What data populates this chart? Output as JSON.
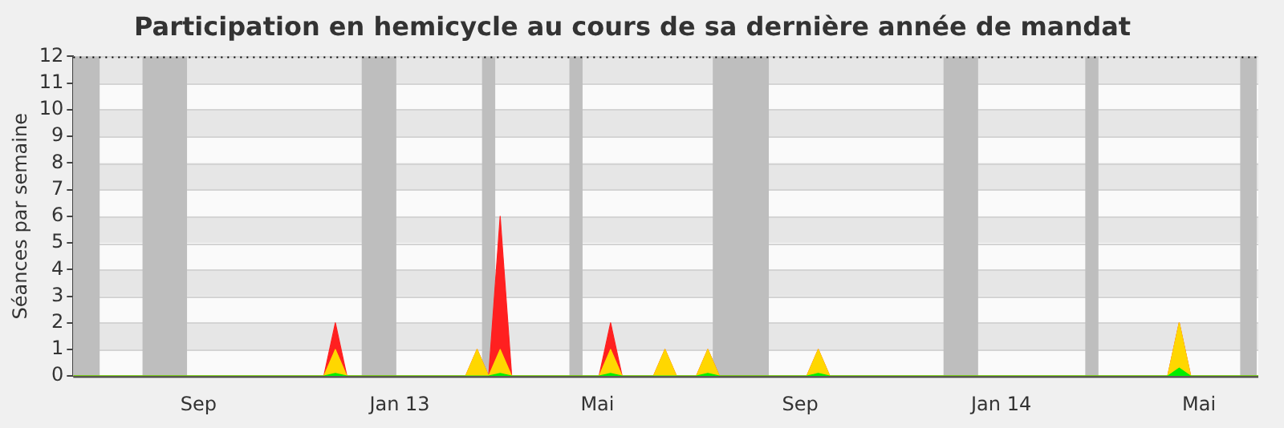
{
  "chart_data": {
    "type": "area",
    "title": "Participation en hemicycle au cours de sa dernière année de mandat",
    "ylabel": "Séances par semaine",
    "x": [
      "2012-07-01",
      "2012-11-30",
      "2012-12-07",
      "2012-12-14",
      "2013-02-24",
      "2013-03-03",
      "2013-03-10",
      "2013-03-17",
      "2013-03-24",
      "2013-05-16",
      "2013-05-23",
      "2013-05-30",
      "2013-06-18",
      "2013-06-25",
      "2013-07-02",
      "2013-07-14",
      "2013-07-21",
      "2013-07-28",
      "2013-09-19",
      "2013-09-26",
      "2013-10-03",
      "2014-04-26",
      "2014-05-03",
      "2014-05-10",
      "2014-06-20"
    ],
    "series": [
      {
        "color": "#ff2020",
        "values": [
          0,
          0,
          2,
          0,
          0,
          1,
          0,
          6,
          0,
          0,
          2,
          0,
          0,
          1,
          0,
          0,
          1,
          0,
          0,
          1,
          0,
          0,
          2,
          0,
          0
        ]
      },
      {
        "color": "#ffd700",
        "values": [
          0,
          0,
          1,
          0,
          0,
          1,
          0,
          1,
          0,
          0,
          1,
          0,
          0,
          1,
          0,
          0,
          1,
          0,
          0,
          1,
          0,
          0,
          2,
          0,
          0
        ]
      },
      {
        "color": "#00ee00",
        "values": [
          0,
          0,
          0.1,
          0,
          0,
          0,
          0,
          0.1,
          0,
          0,
          0.1,
          0,
          0,
          0,
          0,
          0,
          0.1,
          0,
          0,
          0.1,
          0,
          0,
          0.3,
          0,
          0
        ]
      }
    ],
    "xlim": [
      "2012-07-01",
      "2014-06-20"
    ],
    "xticks": [
      {
        "value": "2012-09-15",
        "label": "Sep"
      },
      {
        "value": "2013-01-15",
        "label": "Jan 13"
      },
      {
        "value": "2013-05-15",
        "label": "Mai"
      },
      {
        "value": "2013-09-15",
        "label": "Sep"
      },
      {
        "value": "2014-01-15",
        "label": "Jan 14"
      },
      {
        "value": "2014-05-15",
        "label": "Mai"
      }
    ],
    "ylim": [
      0,
      12
    ],
    "yticks": [
      0,
      1,
      2,
      3,
      4,
      5,
      6,
      7,
      8,
      9,
      10,
      11,
      12
    ],
    "grid": "y",
    "marker": "none",
    "bands": [
      {
        "axis": "x",
        "from": "2012-07-01",
        "to": "2012-07-17",
        "color": "#bebebe"
      },
      {
        "axis": "x",
        "from": "2012-08-12",
        "to": "2012-09-08",
        "color": "#bebebe"
      },
      {
        "axis": "x",
        "from": "2012-12-23",
        "to": "2013-01-13",
        "color": "#bebebe"
      },
      {
        "axis": "x",
        "from": "2013-03-06",
        "to": "2013-03-14",
        "color": "#bebebe"
      },
      {
        "axis": "x",
        "from": "2013-04-28",
        "to": "2013-05-06",
        "color": "#bebebe"
      },
      {
        "axis": "x",
        "from": "2013-07-24",
        "to": "2013-08-27",
        "color": "#bebebe"
      },
      {
        "axis": "x",
        "from": "2013-12-11",
        "to": "2014-01-01",
        "color": "#bebebe"
      },
      {
        "axis": "x",
        "from": "2014-03-07",
        "to": "2014-03-15",
        "color": "#bebebe"
      },
      {
        "axis": "x",
        "from": "2014-06-09",
        "to": "2014-06-19",
        "color": "#bebebe"
      }
    ]
  }
}
